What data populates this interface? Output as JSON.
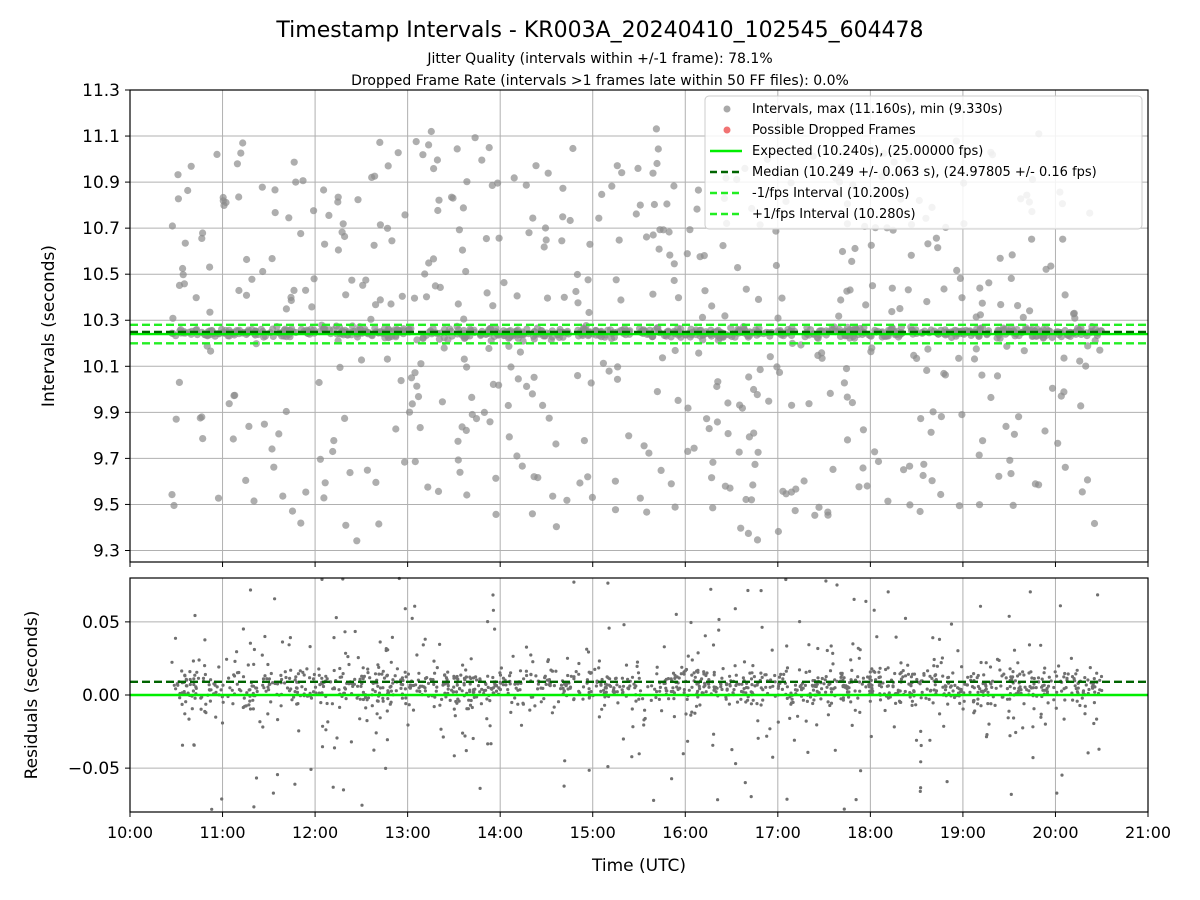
{
  "title": "Timestamp Intervals - KR003A_20240410_102545_604478",
  "subtitle_1": "Jitter Quality (intervals within +/-1 frame): 78.1%",
  "subtitle_2": "Dropped Frame Rate (intervals >1 frames late within 50 FF files): 0.0%",
  "colors": {
    "points": "#8c8c8c",
    "residual_points": "#707070",
    "dropped": "#f06464",
    "expected": "#00ee00",
    "median": "#006400",
    "fps_interval": "#22ee22",
    "grid": "#b0b0b0"
  },
  "chart_data": [
    {
      "type": "scatter",
      "name": "intervals-panel",
      "xlabel": "",
      "ylabel": "Intervals (seconds)",
      "xlim": [
        10.0,
        21.0
      ],
      "ylim": [
        9.25,
        11.3
      ],
      "yticks": [
        9.3,
        9.5,
        9.7,
        9.9,
        10.1,
        10.3,
        10.5,
        10.7,
        10.9,
        11.1,
        11.3
      ],
      "ytick_labels": [
        "9.3",
        "9.5",
        "9.7",
        "9.9",
        "10.1",
        "10.3",
        "10.5",
        "10.7",
        "10.9",
        "11.1",
        "11.3"
      ],
      "grid": true,
      "legend_position": "top-right",
      "legend": [
        "Intervals, max (11.160s), min (9.330s)",
        "Possible Dropped Frames",
        "Expected (10.240s), (25.00000 fps)",
        "Median (10.249 +/- 0.063 s), (24.97805 +/- 0.16 fps)",
        "-1/fps Interval (10.200s)",
        "+1/fps Interval (10.280s)"
      ],
      "lines": {
        "expected": 10.24,
        "median": 10.249,
        "minus_fps": 10.2,
        "plus_fps": 10.28
      },
      "x_range": [
        10.45,
        20.5
      ],
      "y_stats": {
        "max": 11.16,
        "min": 9.33,
        "median": 10.249,
        "std": 0.063
      },
      "dropped_frames": []
    },
    {
      "type": "scatter",
      "name": "residuals-panel",
      "xlabel": "Time (UTC)",
      "ylabel": "Residuals (seconds)",
      "xlim": [
        10.0,
        21.0
      ],
      "ylim": [
        -0.08,
        0.08
      ],
      "yticks": [
        -0.05,
        0.0,
        0.05
      ],
      "ytick_labels": [
        "−0.05",
        "0.00",
        "0.05"
      ],
      "xticks": [
        10,
        11,
        12,
        13,
        14,
        15,
        16,
        17,
        18,
        19,
        20,
        21
      ],
      "xtick_labels": [
        "10:00",
        "11:00",
        "12:00",
        "13:00",
        "14:00",
        "15:00",
        "16:00",
        "17:00",
        "18:00",
        "19:00",
        "20:00",
        "21:00"
      ],
      "grid": true,
      "lines": {
        "zero": 0.0,
        "median": 0.009
      }
    }
  ]
}
